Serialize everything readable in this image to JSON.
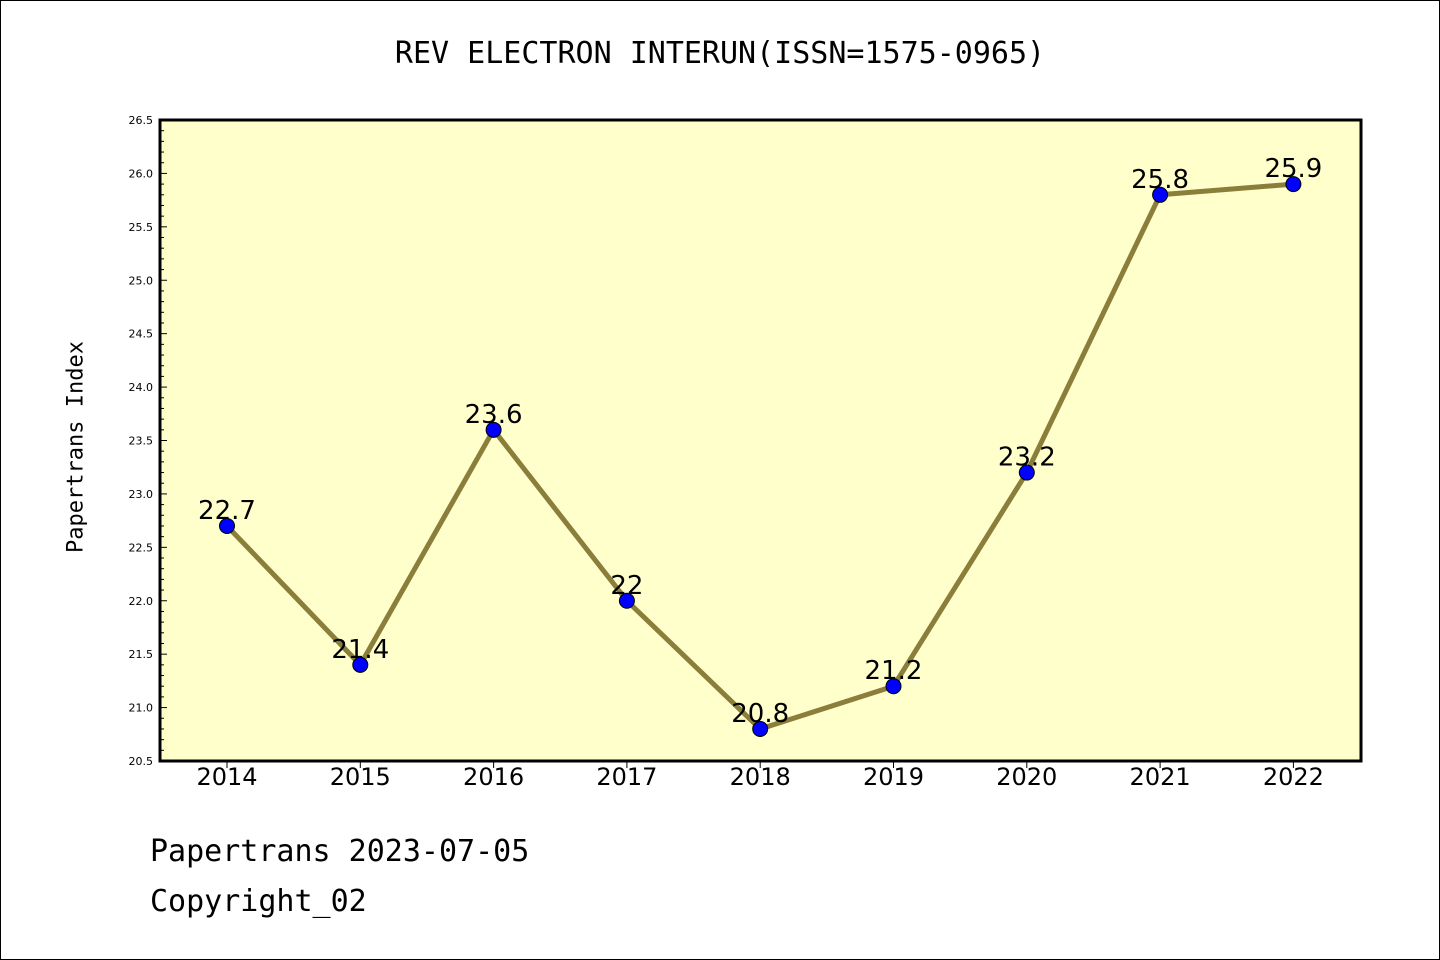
{
  "chart_data": {
    "type": "line",
    "title": "REV ELECTRON INTERUN(ISSN=1575-0965)",
    "xlabel": "",
    "ylabel": "Papertrans Index",
    "categories": [
      "2014",
      "2015",
      "2016",
      "2017",
      "2018",
      "2019",
      "2020",
      "2021",
      "2022"
    ],
    "series": [
      {
        "values": [
          22.7,
          21.4,
          23.6,
          22,
          20.8,
          21.2,
          23.2,
          25.8,
          25.9
        ],
        "labels": [
          "22.7",
          "21.4",
          "23.6",
          "22",
          "20.8",
          "21.2",
          "23.2",
          "25.8",
          "25.9"
        ]
      }
    ],
    "ylim": [
      20.5,
      26.5
    ],
    "yticks": [
      "20.5",
      "21.0",
      "21.5",
      "22.0",
      "22.5",
      "23.0",
      "23.5",
      "24.0",
      "24.5",
      "25.0",
      "25.5",
      "26.0",
      "26.5"
    ],
    "grid": false,
    "colors": {
      "plot_background": "#ffffcc",
      "line": "#8b7d3a",
      "marker": "#0000ff"
    }
  },
  "footer": {
    "date_line": "Papertrans 2023-07-05",
    "copyright_line": "Copyright_02"
  }
}
